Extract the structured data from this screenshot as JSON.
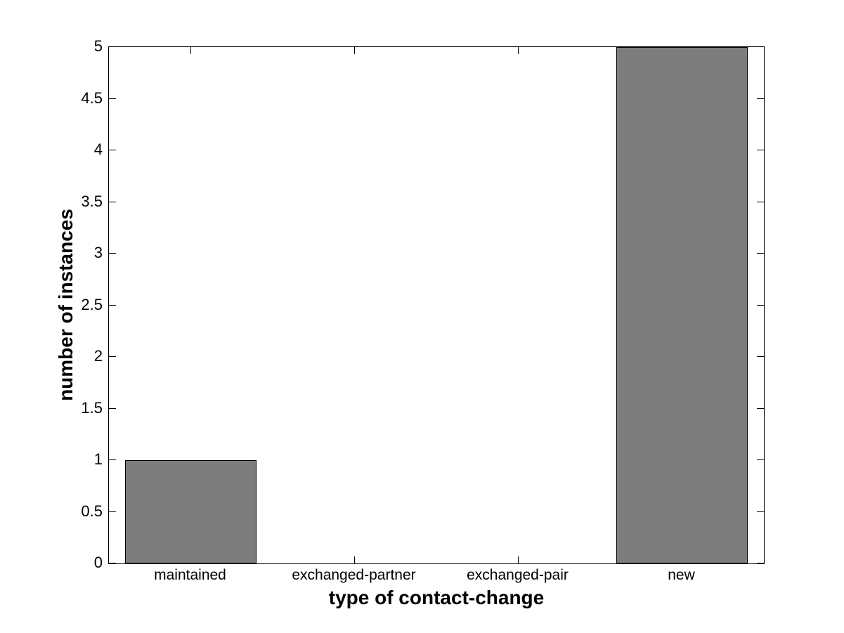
{
  "chart_data": {
    "type": "bar",
    "title": "",
    "xlabel": "type of contact-change",
    "ylabel": "number of instances",
    "categories": [
      "maintained",
      "exchanged-partner",
      "exchanged-pair",
      "new"
    ],
    "values": [
      1,
      0,
      0,
      5
    ],
    "ylim": [
      0,
      5
    ],
    "ytick_step": 0.5,
    "ytick_labels": [
      "0",
      "0.5",
      "1",
      "1.5",
      "2",
      "2.5",
      "3",
      "3.5",
      "4",
      "4.5",
      "5"
    ],
    "xlim": [
      0.5,
      4.5
    ],
    "bar_width_fraction": 0.8,
    "grid": false,
    "legend_position": "none",
    "colors": {
      "bar_fill": "#7d7d7d",
      "bar_edge": "#000000",
      "axis": "#000000",
      "background": "#ffffff",
      "text": "#000000"
    }
  }
}
